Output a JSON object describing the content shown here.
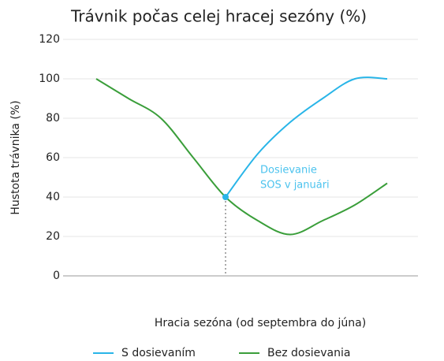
{
  "chart_data": {
    "type": "line",
    "title": "Trávnik počas celej hracej sezóny (%)",
    "xlabel": "Hracia sezóna (od septembra do júna)",
    "ylabel": "Hustota trávnika (%)",
    "annotation": [
      "Dosievanie",
      "SOS v januári"
    ],
    "categories": [
      null,
      null,
      null,
      null,
      null,
      null,
      null,
      null,
      null,
      null
    ],
    "series": [
      {
        "name": "S dosievaním",
        "color": "#29b5e8",
        "values": [
          null,
          null,
          null,
          null,
          40,
          62,
          78,
          90,
          100,
          100
        ]
      },
      {
        "name": "Bez dosievania",
        "color": "#3a9e3a",
        "values": [
          100,
          90,
          80,
          60,
          40,
          28,
          21,
          28,
          36,
          47
        ]
      }
    ],
    "ylim": [
      0,
      120
    ],
    "yticks": [
      0,
      20,
      40,
      60,
      80,
      100,
      120
    ],
    "grid": true
  }
}
